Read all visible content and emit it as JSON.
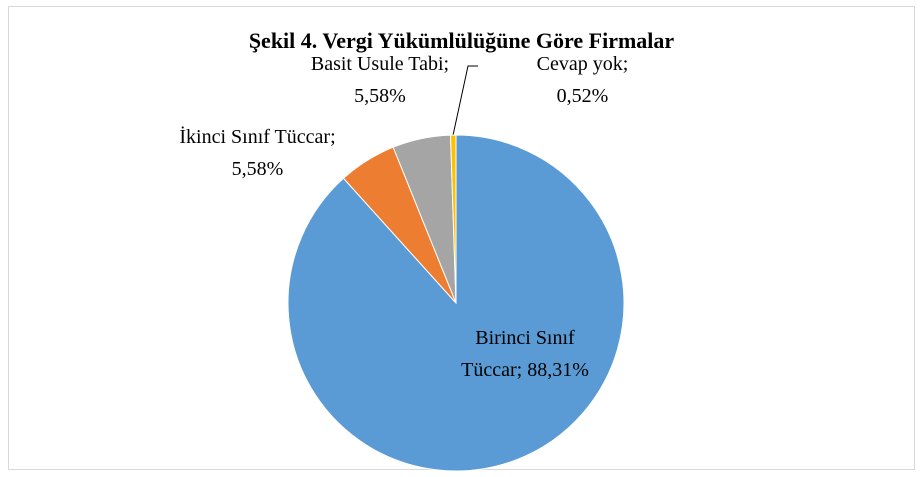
{
  "chart_data": {
    "type": "pie",
    "title": "Şekil 4. Vergi Yükümlülüğüne Göre Firmalar",
    "categories": [
      "Birinci Sınıf Tüccar",
      "İkinci Sınıf Tüccar",
      "Basit Usule Tabi",
      "Cevap yok"
    ],
    "values": [
      88.31,
      5.58,
      5.58,
      0.52
    ],
    "value_labels": [
      "88,31%",
      "5,58%",
      "5,58%",
      "0,52%"
    ],
    "label_separator": ";",
    "colors": [
      "#5b9bd5",
      "#ed7d31",
      "#a5a5a5",
      "#ffc000"
    ]
  }
}
